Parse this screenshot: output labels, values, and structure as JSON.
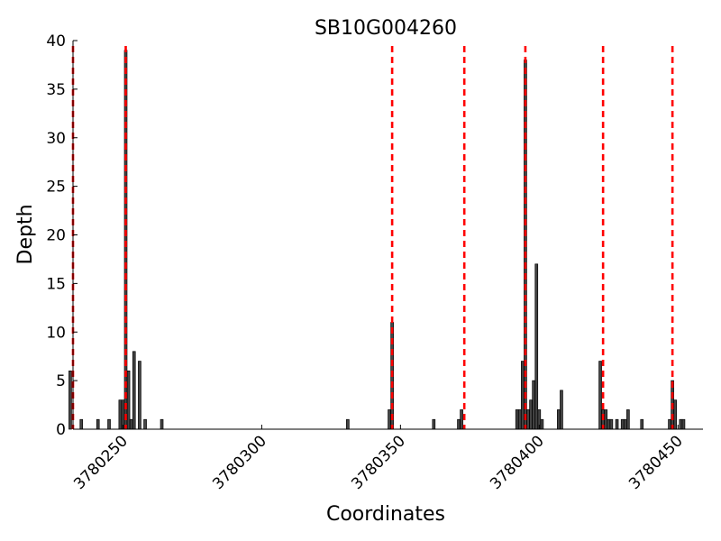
{
  "chart_data": {
    "type": "bar",
    "title": "SB10G004260",
    "xlabel": "Coordinates",
    "ylabel": "Depth",
    "xlim": [
      3780232,
      3780459
    ],
    "ylim": [
      0,
      40
    ],
    "x_ticks": [
      3780250,
      3780300,
      3780350,
      3780400,
      3780450
    ],
    "y_ticks": [
      0,
      5,
      10,
      15,
      20,
      25,
      30,
      35,
      40
    ],
    "grid": false,
    "bar_color": "#444444",
    "marker_color": "#ff0000",
    "exon_boundaries": [
      3780232,
      3780251,
      3780347,
      3780373,
      3780395,
      3780423,
      3780448
    ],
    "series": [
      {
        "x": [
          3780231,
          3780235,
          3780241,
          3780245,
          3780249,
          3780250,
          3780251,
          3780252,
          3780253,
          3780254,
          3780256,
          3780258,
          3780264,
          3780331,
          3780346,
          3780347,
          3780362,
          3780371,
          3780372,
          3780392,
          3780393,
          3780394,
          3780395,
          3780396,
          3780397,
          3780398,
          3780399,
          3780400,
          3780401,
          3780407,
          3780408,
          3780422,
          3780423,
          3780424,
          3780425,
          3780426,
          3780428,
          3780430,
          3780431,
          3780432,
          3780437,
          3780447,
          3780448,
          3780449,
          3780451,
          3780452
        ],
        "values": [
          6,
          1,
          1,
          1,
          3,
          3,
          39,
          6,
          1,
          8,
          7,
          1,
          1,
          1,
          2,
          11,
          1,
          1,
          2,
          2,
          2,
          7,
          38,
          2,
          3,
          5,
          17,
          2,
          1,
          2,
          4,
          7,
          2,
          2,
          1,
          1,
          1,
          1,
          1,
          2,
          1,
          1,
          5,
          3,
          1,
          1
        ]
      }
    ]
  }
}
